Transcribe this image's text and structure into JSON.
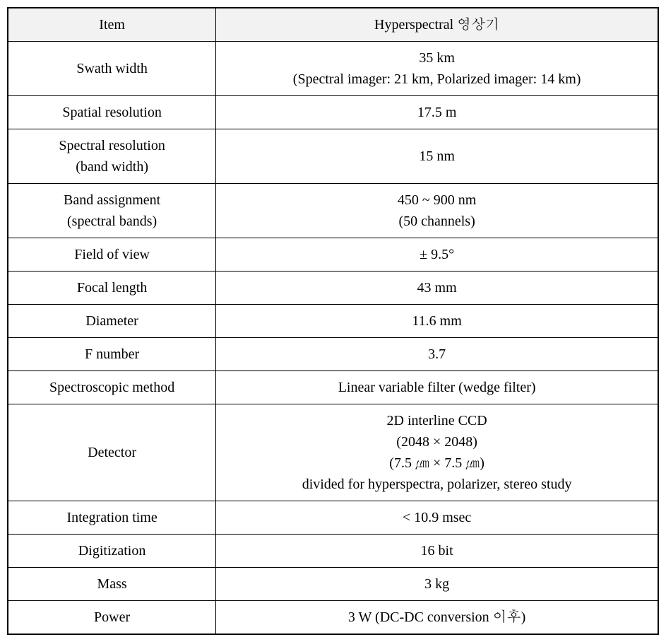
{
  "table": {
    "header_background": "#f2f2f2",
    "border_color": "#000000",
    "font_family": "Times New Roman, Batang, serif",
    "font_size_pt": 15,
    "columns": [
      {
        "label": "Item",
        "width_pct": 32,
        "align": "center"
      },
      {
        "label": "Hyperspectral 영상기",
        "width_pct": 68,
        "align": "center"
      }
    ],
    "rows": [
      {
        "item": "Swath width",
        "value": "35 km\n(Spectral imager: 21 km, Polarized imager: 14 km)"
      },
      {
        "item": "Spatial resolution",
        "value": "17.5 m"
      },
      {
        "item": "Spectral resolution\n(band width)",
        "value": "15 nm"
      },
      {
        "item": "Band assignment\n(spectral bands)",
        "value": "450 ~ 900 nm\n(50 channels)"
      },
      {
        "item": "Field of view",
        "value": "± 9.5°"
      },
      {
        "item": "Focal length",
        "value": "43 mm"
      },
      {
        "item": "Diameter",
        "value": "11.6 mm"
      },
      {
        "item": "F number",
        "value": "3.7"
      },
      {
        "item": "Spectroscopic method",
        "value": "Linear variable filter (wedge filter)"
      },
      {
        "item": "Detector",
        "value": "2D interline CCD\n(2048 × 2048)\n(7.5 ㎛ × 7.5 ㎛)\ndivided for hyperspectra, polarizer, stereo study"
      },
      {
        "item": "Integration time",
        "value": "< 10.9 msec"
      },
      {
        "item": "Digitization",
        "value": "16 bit"
      },
      {
        "item": "Mass",
        "value": "3 kg"
      },
      {
        "item": "Power",
        "value": "3 W (DC-DC conversion 이후)"
      }
    ]
  }
}
